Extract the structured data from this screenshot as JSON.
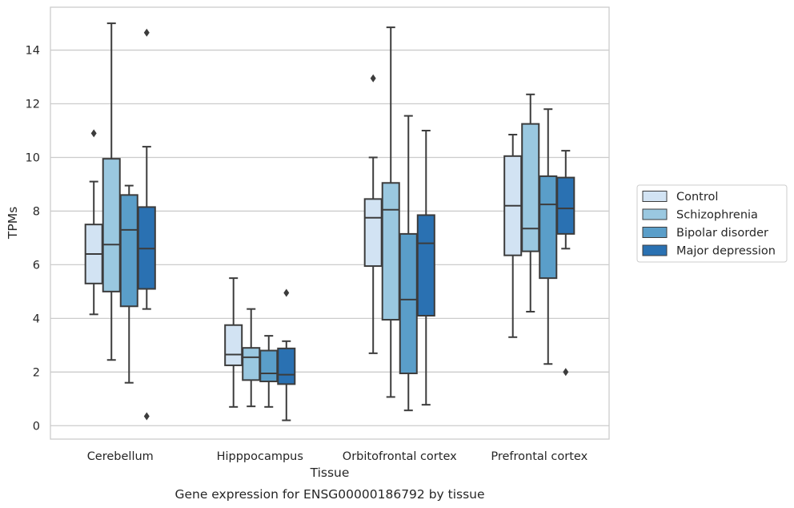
{
  "chart_data": {
    "type": "boxplot",
    "title": "",
    "caption": "Gene expression for ENSG00000186792 by tissue",
    "xlabel": "Tissue",
    "ylabel": "TPMs",
    "ylim": [
      -0.5,
      15.6
    ],
    "yticks": [
      0,
      2,
      4,
      6,
      8,
      10,
      12,
      14
    ],
    "grid": "horizontal",
    "legend_position": "right",
    "categories": [
      "Cerebellum",
      "Hipppocampus",
      "Orbitofrontal cortex",
      "Prefrontal cortex"
    ],
    "series": [
      {
        "name": "Control",
        "color": "#d2e3f3",
        "boxes": [
          {
            "whislo": 4.15,
            "q1": 5.3,
            "med": 6.4,
            "q3": 7.5,
            "whishi": 9.1,
            "fliers": [
              10.9
            ]
          },
          {
            "whislo": 0.7,
            "q1": 2.25,
            "med": 2.65,
            "q3": 3.75,
            "whishi": 5.5,
            "fliers": []
          },
          {
            "whislo": 2.7,
            "q1": 5.95,
            "med": 7.75,
            "q3": 8.45,
            "whishi": 10.0,
            "fliers": [
              12.95
            ]
          },
          {
            "whislo": 3.3,
            "q1": 6.35,
            "med": 8.2,
            "q3": 10.05,
            "whishi": 10.85,
            "fliers": []
          }
        ]
      },
      {
        "name": "Schizophrenia",
        "color": "#9ac8e0",
        "boxes": [
          {
            "whislo": 2.45,
            "q1": 5.0,
            "med": 6.75,
            "q3": 9.95,
            "whishi": 15.0,
            "fliers": []
          },
          {
            "whislo": 0.72,
            "q1": 1.7,
            "med": 2.55,
            "q3": 2.9,
            "whishi": 4.35,
            "fliers": []
          },
          {
            "whislo": 1.07,
            "q1": 3.95,
            "med": 8.05,
            "q3": 9.05,
            "whishi": 14.85,
            "fliers": []
          },
          {
            "whislo": 4.25,
            "q1": 6.5,
            "med": 7.35,
            "q3": 11.25,
            "whishi": 12.35,
            "fliers": []
          }
        ]
      },
      {
        "name": "Bipolar disorder",
        "color": "#5a9ec9",
        "boxes": [
          {
            "whislo": 1.6,
            "q1": 4.45,
            "med": 7.3,
            "q3": 8.6,
            "whishi": 8.95,
            "fliers": []
          },
          {
            "whislo": 0.7,
            "q1": 1.65,
            "med": 1.95,
            "q3": 2.8,
            "whishi": 3.35,
            "fliers": []
          },
          {
            "whislo": 0.57,
            "q1": 1.95,
            "med": 4.7,
            "q3": 7.15,
            "whishi": 11.55,
            "fliers": []
          },
          {
            "whislo": 2.3,
            "q1": 5.5,
            "med": 8.25,
            "q3": 9.3,
            "whishi": 11.8,
            "fliers": []
          }
        ]
      },
      {
        "name": "Major depression",
        "color": "#2a71b2",
        "boxes": [
          {
            "whislo": 4.35,
            "q1": 5.1,
            "med": 6.6,
            "q3": 8.15,
            "whishi": 10.4,
            "fliers": [
              0.35,
              14.65
            ]
          },
          {
            "whislo": 0.2,
            "q1": 1.55,
            "med": 1.9,
            "q3": 2.88,
            "whishi": 3.15,
            "fliers": [
              4.95
            ]
          },
          {
            "whislo": 0.78,
            "q1": 4.1,
            "med": 6.8,
            "q3": 7.85,
            "whishi": 11.0,
            "fliers": []
          },
          {
            "whislo": 6.6,
            "q1": 7.15,
            "med": 8.1,
            "q3": 9.25,
            "whishi": 10.25,
            "fliers": [
              2.0
            ]
          }
        ]
      }
    ]
  }
}
